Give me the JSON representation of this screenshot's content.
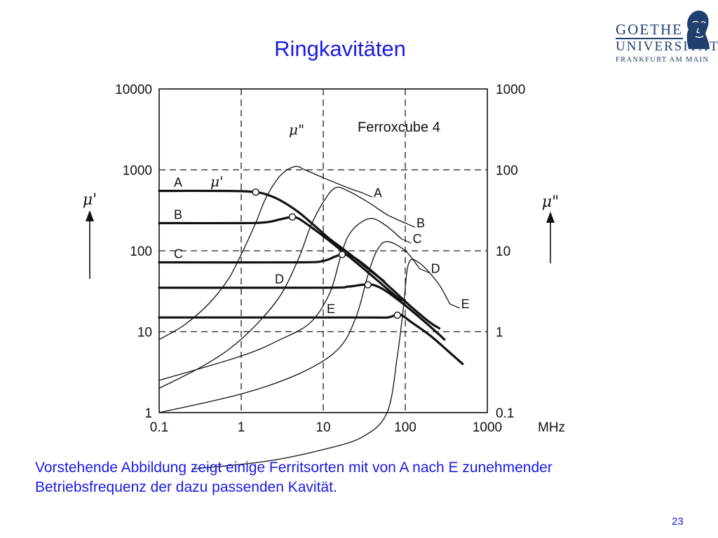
{
  "slide": {
    "title": "Ringkavitäten",
    "caption_line1": "Vorstehende Abbildung zeigt einige Ferritsorten mit von A nach E zunehmender",
    "caption_line2": "Betriebsfrequenz der dazu passenden Kavität.",
    "page_number": "23",
    "text_color": "#1a1ae6"
  },
  "logo": {
    "line1": "GOETHE",
    "line2": "UNIVERSITÄT",
    "line3": "FRANKFURT AM MAIN",
    "color": "#1f3f6e"
  },
  "chart_data": {
    "type": "line",
    "title": "Ferroxcube 4",
    "xlabel": "MHz",
    "ylabel_left": "μ'",
    "ylabel_right": "μ\"",
    "x_scale": "log",
    "y_scale": "log",
    "xlim": [
      0.1,
      1000
    ],
    "ylim_left": [
      1,
      10000
    ],
    "ylim_right": [
      0.1,
      1000
    ],
    "x_ticks": [
      "0.1",
      "1",
      "10",
      "100",
      "1000"
    ],
    "y_ticks_left": [
      "1",
      "10",
      "100",
      "1000",
      "10000"
    ],
    "y_ticks_right": [
      "0.1",
      "1",
      "10",
      "100",
      "1000"
    ],
    "grid": "dashed",
    "series_mu_prime": [
      {
        "name": "A",
        "points": [
          [
            0.1,
            550
          ],
          [
            0.5,
            550
          ],
          [
            1,
            545
          ],
          [
            1.5,
            530
          ],
          [
            2,
            500
          ],
          [
            3,
            420
          ],
          [
            5,
            300
          ],
          [
            8,
            200
          ],
          [
            12,
            140
          ],
          [
            20,
            95
          ],
          [
            35,
            60
          ],
          [
            55,
            42
          ]
        ]
      },
      {
        "name": "B",
        "points": [
          [
            0.1,
            220
          ],
          [
            1,
            220
          ],
          [
            2,
            225
          ],
          [
            3,
            245
          ],
          [
            4,
            260
          ],
          [
            5,
            250
          ],
          [
            8,
            180
          ],
          [
            15,
            110
          ],
          [
            30,
            62
          ],
          [
            60,
            34
          ],
          [
            90,
            24
          ]
        ]
      },
      {
        "name": "C",
        "points": [
          [
            0.1,
            72
          ],
          [
            5,
            72
          ],
          [
            10,
            75
          ],
          [
            14,
            85
          ],
          [
            18,
            90
          ],
          [
            25,
            80
          ],
          [
            40,
            55
          ],
          [
            70,
            33
          ],
          [
            120,
            20
          ],
          [
            200,
            13
          ],
          [
            260,
            11
          ]
        ]
      },
      {
        "name": "D",
        "points": [
          [
            0.1,
            35
          ],
          [
            10,
            35
          ],
          [
            20,
            36
          ],
          [
            30,
            38
          ],
          [
            40,
            38
          ],
          [
            55,
            33
          ],
          [
            90,
            23
          ],
          [
            150,
            15
          ],
          [
            250,
            9.5
          ],
          [
            300,
            8
          ]
        ]
      },
      {
        "name": "E",
        "points": [
          [
            0.1,
            15
          ],
          [
            30,
            15
          ],
          [
            60,
            15
          ],
          [
            75,
            16
          ],
          [
            90,
            16
          ],
          [
            120,
            13
          ],
          [
            200,
            9
          ],
          [
            350,
            5.5
          ],
          [
            500,
            4
          ]
        ]
      }
    ],
    "series_mu_double_prime": [
      {
        "name": "A",
        "points": [
          [
            0.1,
            0.8
          ],
          [
            0.2,
            1.2
          ],
          [
            0.4,
            2.2
          ],
          [
            0.7,
            4.5
          ],
          [
            1,
            9
          ],
          [
            1.5,
            22
          ],
          [
            2,
            45
          ],
          [
            3,
            85
          ],
          [
            4.5,
            110
          ],
          [
            6,
            100
          ],
          [
            10,
            80
          ],
          [
            20,
            60
          ],
          [
            30,
            52
          ]
        ]
      },
      {
        "name": "B",
        "points": [
          [
            0.1,
            0.2
          ],
          [
            0.3,
            0.35
          ],
          [
            0.7,
            0.6
          ],
          [
            1.5,
            1.2
          ],
          [
            3,
            2.8
          ],
          [
            5,
            8
          ],
          [
            7,
            20
          ],
          [
            10,
            40
          ],
          [
            14,
            60
          ],
          [
            20,
            55
          ],
          [
            35,
            40
          ],
          [
            60,
            28
          ],
          [
            100,
            22
          ]
        ]
      },
      {
        "name": "C",
        "points": [
          [
            0.1,
            0.25
          ],
          [
            1,
            0.5
          ],
          [
            3,
            0.8
          ],
          [
            7,
            1.3
          ],
          [
            12,
            3
          ],
          [
            16,
            8
          ],
          [
            20,
            15
          ],
          [
            28,
            22
          ],
          [
            40,
            25
          ],
          [
            60,
            20
          ],
          [
            90,
            14
          ]
        ]
      },
      {
        "name": "D",
        "points": [
          [
            0.1,
            0.1
          ],
          [
            1,
            0.17
          ],
          [
            5,
            0.3
          ],
          [
            15,
            0.6
          ],
          [
            25,
            1.5
          ],
          [
            35,
            5
          ],
          [
            45,
            10
          ],
          [
            60,
            13
          ],
          [
            100,
            10
          ],
          [
            150,
            6
          ]
        ]
      },
      {
        "name": "E",
        "points": [
          [
            0.25,
            0.02
          ],
          [
            2,
            0.025
          ],
          [
            10,
            0.035
          ],
          [
            30,
            0.05
          ],
          [
            60,
            0.1
          ],
          [
            80,
            0.5
          ],
          [
            95,
            2
          ],
          [
            110,
            7
          ],
          [
            150,
            7
          ],
          [
            250,
            4
          ],
          [
            350,
            2.2
          ]
        ]
      }
    ],
    "crossover_markers": [
      {
        "series": "A",
        "x": 1.5,
        "mu_prime": 530
      },
      {
        "series": "B",
        "x": 4.2,
        "mu_prime": 262
      },
      {
        "series": "C",
        "x": 17,
        "mu_prime": 90
      },
      {
        "series": "D",
        "x": 35,
        "mu_prime": 38
      },
      {
        "series": "E",
        "x": 80,
        "mu_prime": 16
      }
    ],
    "annotations": {
      "curve_label_mu_prime": "μ'",
      "curve_label_mu_double_prime": "μ\""
    }
  }
}
